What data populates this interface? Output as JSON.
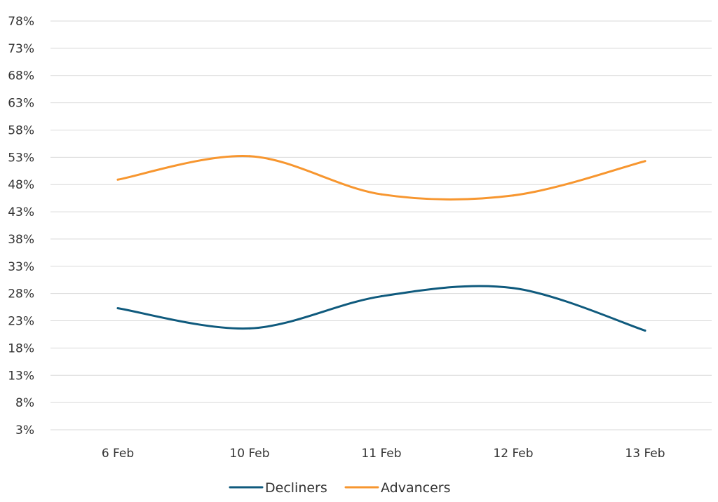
{
  "chart_data": {
    "type": "line",
    "title": "",
    "xlabel": "",
    "ylabel": "",
    "categories": [
      "6 Feb",
      "10 Feb",
      "11 Feb",
      "12 Feb",
      "13 Feb"
    ],
    "y_ticks": [
      "3%",
      "8%",
      "13%",
      "18%",
      "23%",
      "28%",
      "33%",
      "38%",
      "43%",
      "48%",
      "53%",
      "58%",
      "63%",
      "68%",
      "73%",
      "78%"
    ],
    "ylim": [
      3,
      78
    ],
    "y_unit": "%",
    "grid": true,
    "smooth": true,
    "legend_position": "bottom-center",
    "series": [
      {
        "name": "Decliners",
        "color": "#0f5a7d",
        "values": [
          25.3,
          21.6,
          27.5,
          29.0,
          21.2
        ]
      },
      {
        "name": "Advancers",
        "color": "#f7962f",
        "values": [
          48.9,
          53.2,
          46.2,
          46.0,
          52.3
        ]
      }
    ]
  }
}
